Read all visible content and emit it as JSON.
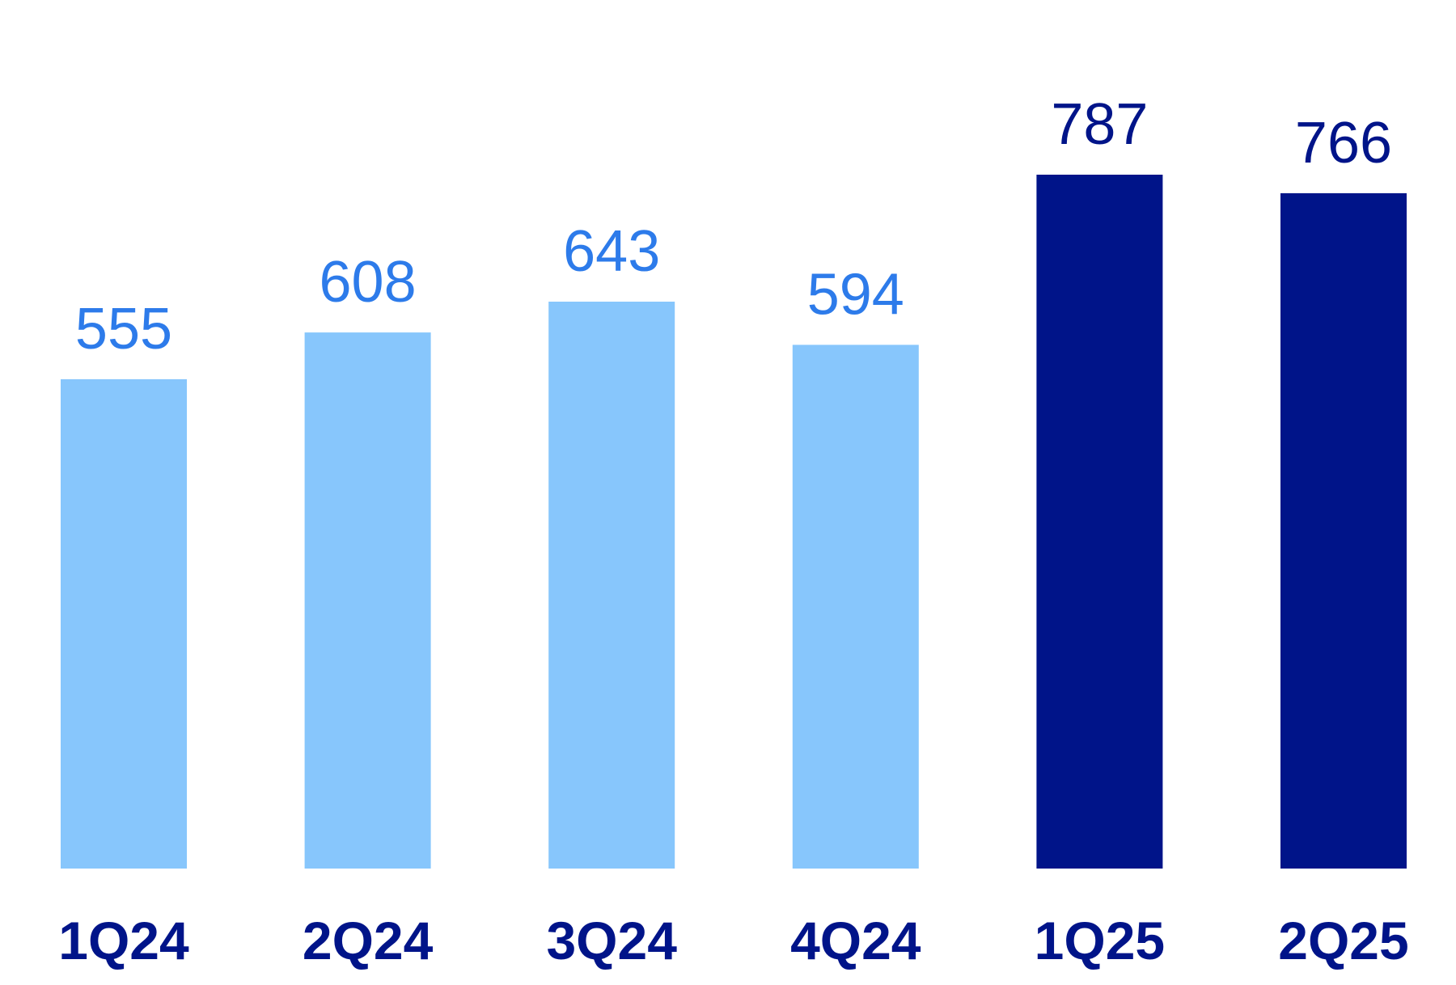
{
  "chart_data": {
    "type": "bar",
    "categories": [
      "1Q24",
      "2Q24",
      "3Q24",
      "4Q24",
      "1Q25",
      "2Q25"
    ],
    "values": [
      555,
      608,
      643,
      594,
      787,
      766
    ],
    "value_labels": [
      "555",
      "608",
      "643",
      "594",
      "787",
      "766"
    ],
    "ylim": [
      0,
      787
    ],
    "grid": false,
    "legend": "none"
  },
  "colors": {
    "bar_2024": "#87C6FC",
    "bar_2025": "#001489",
    "label_2024": "#2D7BEA",
    "label_2025": "#001489",
    "category_label": "#001489"
  }
}
